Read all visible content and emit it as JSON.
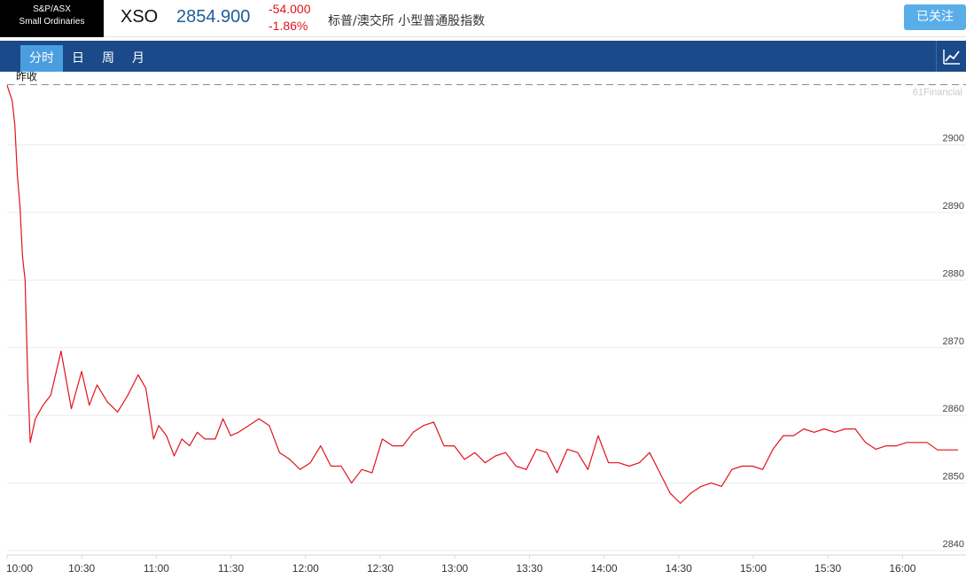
{
  "header": {
    "logo_line1": "S&P/ASX",
    "logo_line2": "Small Ordinaries",
    "symbol": "XSO",
    "price": "2854.900",
    "change": "-54.000",
    "change_pct": "-1.86%",
    "name": "标普/澳交所 小型普通股指数",
    "follow_label": "已关注"
  },
  "tabs": [
    {
      "label": "分时",
      "active": true
    },
    {
      "label": "日",
      "active": false
    },
    {
      "label": "周",
      "active": false
    },
    {
      "label": "月",
      "active": false
    }
  ],
  "colors": {
    "line": "#e1131b",
    "accent": "#1a4a8a",
    "tab_active": "#4a9ee0",
    "follow": "#5aaee8"
  },
  "icons": {
    "chart_toggle": "line-chart-icon"
  },
  "chart_data": {
    "type": "line",
    "prev_close_label": "昨收",
    "prev_close": 2908.9,
    "watermark": "61Financial",
    "ylim": [
      2840,
      2909.5
    ],
    "yticks": [
      2900,
      2890,
      2880,
      2870,
      2860,
      2850,
      2840
    ],
    "xticks": [
      "10:00",
      "10:30",
      "11:00",
      "11:30",
      "12:00",
      "12:30",
      "13:00",
      "13:30",
      "14:00",
      "14:30",
      "15:00",
      "15:30",
      "16:00"
    ],
    "x_minutes": [
      0,
      2,
      3,
      4,
      5,
      6,
      7,
      8,
      9,
      11,
      14,
      17,
      21,
      25,
      29,
      32,
      35,
      39,
      43,
      47,
      51,
      54,
      57,
      59,
      62,
      65,
      68,
      71,
      74,
      77,
      81,
      84,
      87,
      90,
      94,
      98,
      102,
      106,
      110,
      114,
      118,
      122,
      126,
      130,
      134,
      138,
      142,
      146,
      150,
      154,
      158,
      162,
      166,
      170,
      174,
      178,
      182,
      186,
      190,
      194,
      198,
      202,
      206,
      210,
      214,
      218,
      222,
      226,
      230,
      234,
      238,
      242,
      246,
      250,
      254,
      258,
      262,
      266,
      270,
      274,
      278,
      282,
      286,
      290,
      294,
      298,
      302,
      306,
      310,
      314,
      318,
      322,
      326,
      330,
      334,
      338,
      342,
      346,
      350,
      354,
      358,
      362,
      366,
      370
    ],
    "y_values": [
      2908.8,
      2906.5,
      2903,
      2895.5,
      2891,
      2883.5,
      2880,
      2866,
      2856,
      2859.5,
      2861.5,
      2863,
      2869.5,
      2861,
      2866.5,
      2861.5,
      2864.5,
      2862,
      2860.5,
      2863,
      2866,
      2864,
      2856.5,
      2858.5,
      2857,
      2854,
      2856.5,
      2855.5,
      2857.5,
      2856.5,
      2856.5,
      2859.5,
      2857,
      2857.5,
      2858.5,
      2859.5,
      2858.5,
      2854.5,
      2853.5,
      2852,
      2853,
      2855.5,
      2852.5,
      2852.5,
      2850,
      2852,
      2851.5,
      2856.5,
      2855.5,
      2855.5,
      2857.5,
      2858.5,
      2859,
      2855.5,
      2855.5,
      2853.5,
      2854.5,
      2853,
      2854,
      2854.5,
      2852.5,
      2852,
      2855,
      2854.5,
      2851.5,
      2855,
      2854.5,
      2852,
      2857,
      2853,
      2853,
      2852.5,
      2853,
      2854.5,
      2851.5,
      2848.5,
      2847,
      2848.5,
      2849.5,
      2850,
      2849.5,
      2852,
      2852.5,
      2852.5,
      2852,
      2855,
      2857,
      2857,
      2858,
      2857.5,
      2858,
      2857.5,
      2858,
      2858,
      2856,
      2855,
      2855.5,
      2855.5,
      2856,
      2856,
      2856,
      2854.9,
      2854.9,
      2854.9
    ]
  }
}
